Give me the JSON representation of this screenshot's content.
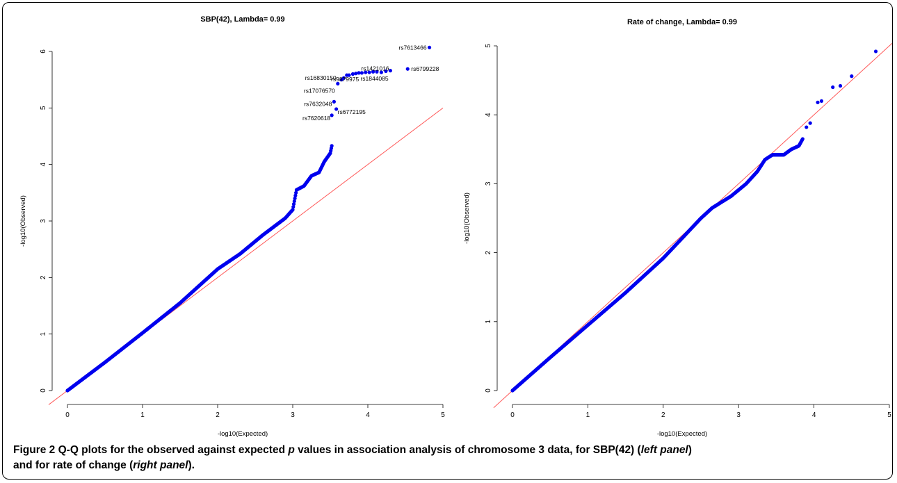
{
  "caption": {
    "label": "Figure 2",
    "part1": " Q-Q plots for the observed against expected ",
    "p_symbol": "p",
    "part2": " values in association analysis of chromosome 3 data, for SBP(42) (",
    "left_panel": "left panel",
    "part3": ")",
    "line2a": "and for rate of change (",
    "right_panel": "right panel",
    "line2b": ")."
  },
  "chart_data": [
    {
      "type": "scatter",
      "title": "SBP(42), Lambda= 0.99",
      "xlabel": "-log10(Expected)",
      "ylabel": "-log10(Observed)",
      "xlim": [
        0,
        5
      ],
      "ylim": [
        0,
        6
      ],
      "xticks": [
        "0",
        "1",
        "2",
        "3",
        "4",
        "5"
      ],
      "yticks": [
        "0",
        "1",
        "2",
        "3",
        "4",
        "5",
        "6"
      ],
      "grid": false,
      "reference_line": "y = x",
      "point_color": "#0000ee",
      "line_color": "#ff5a5a",
      "curve": [
        [
          0,
          0
        ],
        [
          0.5,
          0.5
        ],
        [
          1,
          1.02
        ],
        [
          1.5,
          1.55
        ],
        [
          2,
          2.15
        ],
        [
          2.3,
          2.42
        ],
        [
          2.6,
          2.75
        ],
        [
          2.9,
          3.05
        ],
        [
          3.0,
          3.2
        ],
        [
          3.05,
          3.55
        ],
        [
          3.15,
          3.62
        ],
        [
          3.25,
          3.8
        ],
        [
          3.35,
          3.86
        ],
        [
          3.42,
          4.05
        ],
        [
          3.5,
          4.2
        ],
        [
          3.52,
          4.33
        ]
      ],
      "labeled_points": [
        {
          "label": "rs7613466",
          "x": 4.82,
          "y": 6.07
        },
        {
          "label": "rs6799228",
          "x": 4.53,
          "y": 5.69
        },
        {
          "label": "rs1421016",
          "x": 4.3,
          "y": 5.66
        },
        {
          "label": "rs1844085",
          "x": 4.18,
          "y": 5.63
        },
        {
          "label": "rs9879975",
          "x": 3.88,
          "y": 5.62
        },
        {
          "label": "rs16830150",
          "x": 3.72,
          "y": 5.58
        },
        {
          "label": "rs17076570",
          "x": 3.6,
          "y": 5.43
        },
        {
          "label": "rs7632048",
          "x": 3.55,
          "y": 5.11
        },
        {
          "label": "rs6772195",
          "x": 3.58,
          "y": 4.98
        },
        {
          "label": "rs7620618",
          "x": 3.52,
          "y": 4.87
        }
      ],
      "extra_points": [
        [
          3.65,
          5.5
        ],
        [
          3.68,
          5.53
        ],
        [
          3.75,
          5.58
        ],
        [
          3.8,
          5.6
        ],
        [
          3.84,
          5.61
        ],
        [
          3.92,
          5.62
        ],
        [
          3.97,
          5.63
        ],
        [
          4.02,
          5.63
        ],
        [
          4.07,
          5.64
        ],
        [
          4.12,
          5.64
        ],
        [
          4.24,
          5.65
        ]
      ]
    },
    {
      "type": "scatter",
      "title": "Rate of change, Lambda= 0.99",
      "xlabel": "-log10(Expected)",
      "ylabel": "-log10(Observed)",
      "xlim": [
        0,
        5
      ],
      "ylim": [
        0,
        5
      ],
      "xticks": [
        "0",
        "1",
        "2",
        "3",
        "4",
        "5"
      ],
      "yticks": [
        "0",
        "1",
        "2",
        "3",
        "4",
        "5"
      ],
      "grid": false,
      "reference_line": "y = x",
      "point_color": "#0000ee",
      "line_color": "#ff5a5a",
      "curve": [
        [
          0,
          0
        ],
        [
          0.5,
          0.48
        ],
        [
          1,
          0.95
        ],
        [
          1.5,
          1.42
        ],
        [
          2,
          1.92
        ],
        [
          2.5,
          2.5
        ],
        [
          2.65,
          2.65
        ],
        [
          2.9,
          2.82
        ],
        [
          3.1,
          3.0
        ],
        [
          3.25,
          3.18
        ],
        [
          3.35,
          3.35
        ],
        [
          3.45,
          3.42
        ],
        [
          3.6,
          3.42
        ],
        [
          3.7,
          3.5
        ],
        [
          3.8,
          3.55
        ],
        [
          3.85,
          3.65
        ]
      ],
      "extra_points": [
        [
          3.9,
          3.82
        ],
        [
          3.95,
          3.88
        ],
        [
          4.05,
          4.18
        ],
        [
          4.1,
          4.2
        ],
        [
          4.25,
          4.4
        ],
        [
          4.35,
          4.42
        ],
        [
          4.5,
          4.56
        ],
        [
          4.82,
          4.92
        ]
      ],
      "labeled_points": []
    }
  ]
}
